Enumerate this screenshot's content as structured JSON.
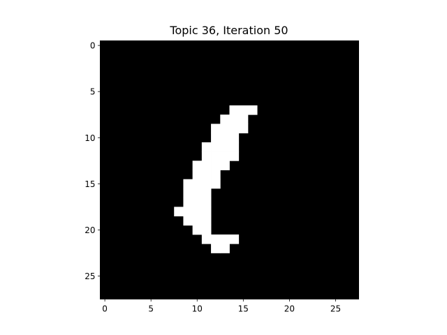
{
  "figure": {
    "title": "Topic 36, Iteration 50"
  },
  "chart_data": {
    "type": "heatmap",
    "title": "Topic 36, Iteration 50",
    "xlabel": "",
    "ylabel": "",
    "colormap": "gray",
    "background_color": "#000000",
    "foreground_color": "#ffffff",
    "shape": [
      28,
      28
    ],
    "xlim": [
      -0.5,
      27.5
    ],
    "ylim": [
      27.5,
      -0.5
    ],
    "xticks": [
      0,
      5,
      10,
      15,
      20,
      25
    ],
    "yticks": [
      0,
      5,
      10,
      15,
      20,
      25
    ],
    "xtick_labels": [
      "0",
      "5",
      "10",
      "15",
      "20",
      "25"
    ],
    "ytick_labels": [
      "0",
      "5",
      "10",
      "15",
      "20",
      "25"
    ],
    "grid": false,
    "bright_pixels_by_row": [
      {
        "row": 7,
        "cols": [
          14,
          15,
          16
        ]
      },
      {
        "row": 8,
        "cols": [
          13,
          14,
          15
        ]
      },
      {
        "row": 9,
        "cols": [
          12,
          13,
          14,
          15
        ]
      },
      {
        "row": 10,
        "cols": [
          12,
          13,
          14
        ]
      },
      {
        "row": 11,
        "cols": [
          11,
          12,
          13,
          14
        ]
      },
      {
        "row": 12,
        "cols": [
          11,
          12,
          13,
          14
        ]
      },
      {
        "row": 13,
        "cols": [
          10,
          11,
          12,
          13
        ]
      },
      {
        "row": 14,
        "cols": [
          10,
          11,
          12
        ]
      },
      {
        "row": 15,
        "cols": [
          9,
          10,
          11,
          12
        ]
      },
      {
        "row": 16,
        "cols": [
          9,
          10,
          11
        ]
      },
      {
        "row": 17,
        "cols": [
          9,
          10,
          11
        ]
      },
      {
        "row": 18,
        "cols": [
          8,
          9,
          10,
          11
        ]
      },
      {
        "row": 19,
        "cols": [
          9,
          10,
          11
        ]
      },
      {
        "row": 20,
        "cols": [
          10,
          11
        ]
      },
      {
        "row": 21,
        "cols": [
          11,
          12,
          13,
          14
        ]
      },
      {
        "row": 22,
        "cols": [
          12,
          13
        ]
      }
    ]
  }
}
